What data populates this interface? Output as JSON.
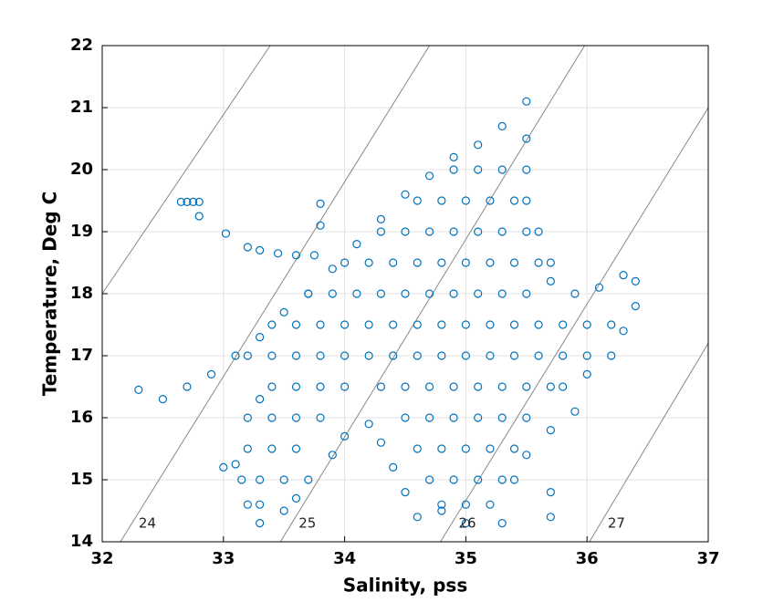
{
  "chart_data": {
    "type": "scatter",
    "xlabel": "Salinity, pss",
    "ylabel": "Temperature, Deg C",
    "xlim": [
      32,
      37
    ],
    "ylim": [
      14,
      22
    ],
    "xticks": [
      32,
      33,
      34,
      35,
      36,
      37
    ],
    "yticks": [
      14,
      15,
      16,
      17,
      18,
      19,
      20,
      21,
      22
    ],
    "grid": true,
    "contour_color": "#888888",
    "contours": [
      {
        "points": [
          [
            32,
            18
          ],
          [
            33.386,
            22
          ]
        ]
      },
      {
        "label": 24,
        "points": [
          [
            32.15,
            14
          ],
          [
            34.7,
            22
          ]
        ]
      },
      {
        "label": 25,
        "points": [
          [
            33.47,
            14
          ],
          [
            35.98,
            22
          ]
        ]
      },
      {
        "label": 26,
        "points": [
          [
            34.79,
            14
          ],
          [
            37,
            21.0
          ]
        ]
      },
      {
        "label": 27,
        "points": [
          [
            36.02,
            14
          ],
          [
            37,
            17.2
          ]
        ]
      }
    ],
    "series": [
      {
        "color": "#0072bd",
        "points": [
          [
            32.3,
            16.45
          ],
          [
            32.5,
            16.3
          ],
          [
            32.7,
            16.5
          ],
          [
            32.9,
            16.7
          ],
          [
            33.1,
            17.0
          ],
          [
            33.3,
            17.3
          ],
          [
            33.5,
            17.7
          ],
          [
            33.7,
            18.0
          ],
          [
            33.9,
            18.4
          ],
          [
            34.1,
            18.8
          ],
          [
            34.3,
            19.2
          ],
          [
            34.5,
            19.6
          ],
          [
            34.7,
            19.9
          ],
          [
            34.9,
            20.2
          ],
          [
            35.1,
            20.4
          ],
          [
            35.3,
            20.7
          ],
          [
            35.5,
            21.1
          ],
          [
            32.65,
            19.48
          ],
          [
            32.7,
            19.48
          ],
          [
            32.75,
            19.48
          ],
          [
            32.8,
            19.48
          ],
          [
            32.8,
            19.25
          ],
          [
            33.02,
            18.97
          ],
          [
            33.2,
            18.75
          ],
          [
            33.3,
            18.7
          ],
          [
            33.45,
            18.65
          ],
          [
            33.6,
            18.62
          ],
          [
            33.75,
            18.62
          ],
          [
            33.8,
            19.45
          ],
          [
            33.8,
            19.1
          ],
          [
            35.5,
            20.5
          ],
          [
            35.5,
            20.0
          ],
          [
            35.5,
            19.5
          ],
          [
            35.6,
            19.0
          ],
          [
            35.7,
            18.5
          ],
          [
            35.7,
            18.2
          ],
          [
            35.9,
            18.0
          ],
          [
            36.1,
            18.1
          ],
          [
            36.3,
            18.3
          ],
          [
            36.4,
            18.2
          ],
          [
            36.4,
            17.8
          ],
          [
            36.3,
            17.4
          ],
          [
            36.2,
            17.0
          ],
          [
            36.0,
            16.7
          ],
          [
            35.8,
            16.5
          ],
          [
            35.9,
            16.1
          ],
          [
            35.7,
            15.8
          ],
          [
            35.5,
            15.4
          ],
          [
            35.4,
            15.0
          ],
          [
            35.7,
            14.8
          ],
          [
            35.7,
            14.4
          ],
          [
            35.3,
            14.3
          ],
          [
            35.0,
            14.3
          ],
          [
            34.8,
            14.5
          ],
          [
            34.6,
            14.4
          ],
          [
            34.5,
            14.8
          ],
          [
            34.4,
            15.2
          ],
          [
            34.3,
            15.6
          ],
          [
            34.2,
            15.9
          ],
          [
            34.0,
            15.7
          ],
          [
            33.9,
            15.4
          ],
          [
            33.7,
            15.0
          ],
          [
            33.6,
            14.7
          ],
          [
            33.5,
            14.5
          ],
          [
            33.3,
            14.3
          ],
          [
            33.2,
            14.6
          ],
          [
            33.15,
            15.0
          ],
          [
            33.2,
            15.5
          ],
          [
            33.2,
            16.0
          ],
          [
            33.3,
            16.3
          ],
          [
            33.0,
            15.2
          ],
          [
            33.1,
            15.25
          ],
          [
            34.9,
            20
          ],
          [
            35.1,
            20
          ],
          [
            35.3,
            20
          ],
          [
            34.6,
            19.5
          ],
          [
            34.8,
            19.5
          ],
          [
            35.0,
            19.5
          ],
          [
            35.2,
            19.5
          ],
          [
            35.4,
            19.5
          ],
          [
            34.3,
            19
          ],
          [
            34.5,
            19
          ],
          [
            34.7,
            19
          ],
          [
            34.9,
            19
          ],
          [
            35.1,
            19
          ],
          [
            35.3,
            19
          ],
          [
            35.5,
            19
          ],
          [
            34.0,
            18.5
          ],
          [
            34.2,
            18.5
          ],
          [
            34.4,
            18.5
          ],
          [
            34.6,
            18.5
          ],
          [
            34.8,
            18.5
          ],
          [
            35.0,
            18.5
          ],
          [
            35.2,
            18.5
          ],
          [
            35.4,
            18.5
          ],
          [
            35.6,
            18.5
          ],
          [
            33.7,
            18
          ],
          [
            33.9,
            18
          ],
          [
            34.1,
            18
          ],
          [
            34.3,
            18
          ],
          [
            34.5,
            18
          ],
          [
            34.7,
            18
          ],
          [
            34.9,
            18
          ],
          [
            35.1,
            18
          ],
          [
            35.3,
            18
          ],
          [
            35.5,
            18
          ],
          [
            33.4,
            17.5
          ],
          [
            33.6,
            17.5
          ],
          [
            33.8,
            17.5
          ],
          [
            34.0,
            17.5
          ],
          [
            34.2,
            17.5
          ],
          [
            34.4,
            17.5
          ],
          [
            34.6,
            17.5
          ],
          [
            34.8,
            17.5
          ],
          [
            35.0,
            17.5
          ],
          [
            35.2,
            17.5
          ],
          [
            35.4,
            17.5
          ],
          [
            35.6,
            17.5
          ],
          [
            35.8,
            17.5
          ],
          [
            36.0,
            17.5
          ],
          [
            36.2,
            17.5
          ],
          [
            33.2,
            17
          ],
          [
            33.4,
            17
          ],
          [
            33.6,
            17
          ],
          [
            33.8,
            17
          ],
          [
            34.0,
            17
          ],
          [
            34.2,
            17
          ],
          [
            34.4,
            17
          ],
          [
            34.6,
            17
          ],
          [
            34.8,
            17
          ],
          [
            35.0,
            17
          ],
          [
            35.2,
            17
          ],
          [
            35.4,
            17
          ],
          [
            35.6,
            17
          ],
          [
            35.8,
            17
          ],
          [
            36.0,
            17
          ],
          [
            33.4,
            16.5
          ],
          [
            33.6,
            16.5
          ],
          [
            33.8,
            16.5
          ],
          [
            34.0,
            16.5
          ],
          [
            34.3,
            16.5
          ],
          [
            34.5,
            16.5
          ],
          [
            34.7,
            16.5
          ],
          [
            34.9,
            16.5
          ],
          [
            35.1,
            16.5
          ],
          [
            35.3,
            16.5
          ],
          [
            35.5,
            16.5
          ],
          [
            35.7,
            16.5
          ],
          [
            33.4,
            16
          ],
          [
            33.6,
            16
          ],
          [
            33.8,
            16
          ],
          [
            34.5,
            16
          ],
          [
            34.7,
            16
          ],
          [
            34.9,
            16
          ],
          [
            35.1,
            16
          ],
          [
            35.3,
            16
          ],
          [
            35.5,
            16
          ],
          [
            33.4,
            15.5
          ],
          [
            33.6,
            15.5
          ],
          [
            34.6,
            15.5
          ],
          [
            34.8,
            15.5
          ],
          [
            35.0,
            15.5
          ],
          [
            35.2,
            15.5
          ],
          [
            35.4,
            15.5
          ],
          [
            33.3,
            15
          ],
          [
            33.5,
            15
          ],
          [
            34.7,
            15
          ],
          [
            34.9,
            15
          ],
          [
            35.1,
            15
          ],
          [
            35.3,
            15
          ],
          [
            33.3,
            14.6
          ],
          [
            34.8,
            14.6
          ],
          [
            35.0,
            14.6
          ],
          [
            35.2,
            14.6
          ]
        ]
      }
    ]
  }
}
